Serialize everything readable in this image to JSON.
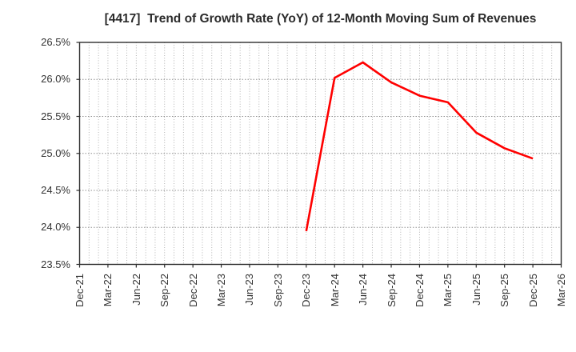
{
  "chart_data": {
    "type": "line",
    "title": "[4417]  Trend of Growth Rate (YoY) of 12-Month Moving Sum of Revenues",
    "xlabel": "",
    "ylabel": "",
    "ylim": [
      23.5,
      26.5
    ],
    "y_tick_step": 0.5,
    "x_month_span": 51,
    "grid": {
      "show": true,
      "style": "dotted",
      "vertical_interval": "monthly",
      "legend": "none"
    },
    "y_ticks": [
      {
        "value": 26.5,
        "label": "26.5%"
      },
      {
        "value": 26.0,
        "label": "26.0%"
      },
      {
        "value": 25.5,
        "label": "25.5%"
      },
      {
        "value": 25.0,
        "label": "25.0%"
      },
      {
        "value": 24.5,
        "label": "24.5%"
      },
      {
        "value": 24.0,
        "label": "24.0%"
      },
      {
        "value": 23.5,
        "label": "23.5%"
      }
    ],
    "x_ticks": [
      {
        "month": 0,
        "label": "Dec-21"
      },
      {
        "month": 3,
        "label": "Mar-22"
      },
      {
        "month": 6,
        "label": "Jun-22"
      },
      {
        "month": 9,
        "label": "Sep-22"
      },
      {
        "month": 12,
        "label": "Dec-22"
      },
      {
        "month": 15,
        "label": "Mar-23"
      },
      {
        "month": 18,
        "label": "Jun-23"
      },
      {
        "month": 21,
        "label": "Sep-23"
      },
      {
        "month": 24,
        "label": "Dec-23"
      },
      {
        "month": 27,
        "label": "Mar-24"
      },
      {
        "month": 30,
        "label": "Jun-24"
      },
      {
        "month": 33,
        "label": "Sep-24"
      },
      {
        "month": 36,
        "label": "Dec-24"
      },
      {
        "month": 39,
        "label": "Mar-25"
      },
      {
        "month": 42,
        "label": "Jun-25"
      },
      {
        "month": 45,
        "label": "Sep-25"
      },
      {
        "month": 48,
        "label": "Dec-25"
      },
      {
        "month": 51,
        "label": "Mar-26"
      }
    ],
    "series": [
      {
        "color": "#ff0000",
        "points": [
          {
            "month": 24,
            "x": "Dec-23",
            "value": 23.95
          },
          {
            "month": 27,
            "x": "Mar-24",
            "value": 26.02
          },
          {
            "month": 30,
            "x": "Jun-24",
            "value": 26.23
          },
          {
            "month": 33,
            "x": "Sep-24",
            "value": 25.96
          },
          {
            "month": 36,
            "x": "Dec-24",
            "value": 25.78
          },
          {
            "month": 39,
            "x": "Mar-25",
            "value": 25.69
          },
          {
            "month": 42,
            "x": "Jun-25",
            "value": 25.28
          },
          {
            "month": 45,
            "x": "Sep-25",
            "value": 25.07
          },
          {
            "month": 48,
            "x": "Dec-25",
            "value": 24.93
          }
        ]
      }
    ],
    "colors": {
      "line": "#ff0000",
      "grid_h": "#8f8f8f",
      "grid_v": "#aaaaaa",
      "border": "#2f2f2f",
      "text": "#333333",
      "background": "#ffffff"
    }
  }
}
